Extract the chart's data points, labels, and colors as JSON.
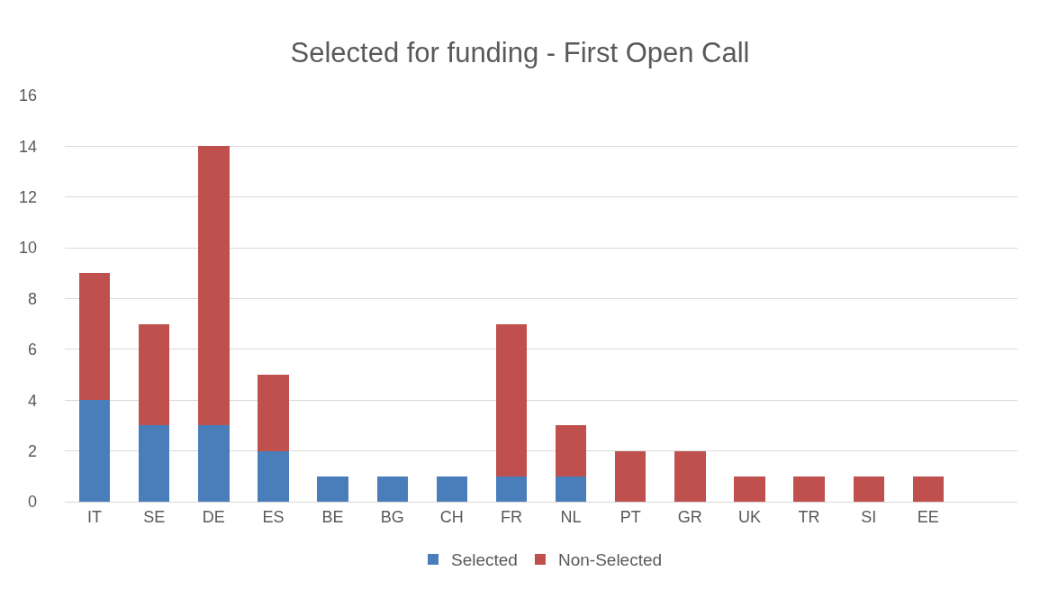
{
  "chart_data": {
    "type": "bar",
    "title": "Selected for funding - First Open Call",
    "stacked": true,
    "categories": [
      "IT",
      "SE",
      "DE",
      "ES",
      "BE",
      "BG",
      "CH",
      "FR",
      "NL",
      "PT",
      "GR",
      "UK",
      "TR",
      "SI",
      "EE",
      null
    ],
    "series": [
      {
        "name": "Selected",
        "color": "#4a7ebb",
        "values": [
          4,
          3,
          3,
          2,
          1,
          1,
          1,
          1,
          1,
          0,
          0,
          0,
          0,
          0,
          0,
          null
        ]
      },
      {
        "name": "Non-Selected",
        "color": "#c0504d",
        "values": [
          5,
          4,
          11,
          3,
          0,
          0,
          0,
          6,
          2,
          2,
          2,
          1,
          1,
          1,
          1,
          null
        ]
      }
    ],
    "ylim": [
      0,
      16
    ],
    "yticks": [
      0,
      2,
      4,
      6,
      8,
      10,
      12,
      14,
      16
    ],
    "grid": "y",
    "legend": "bottom"
  }
}
